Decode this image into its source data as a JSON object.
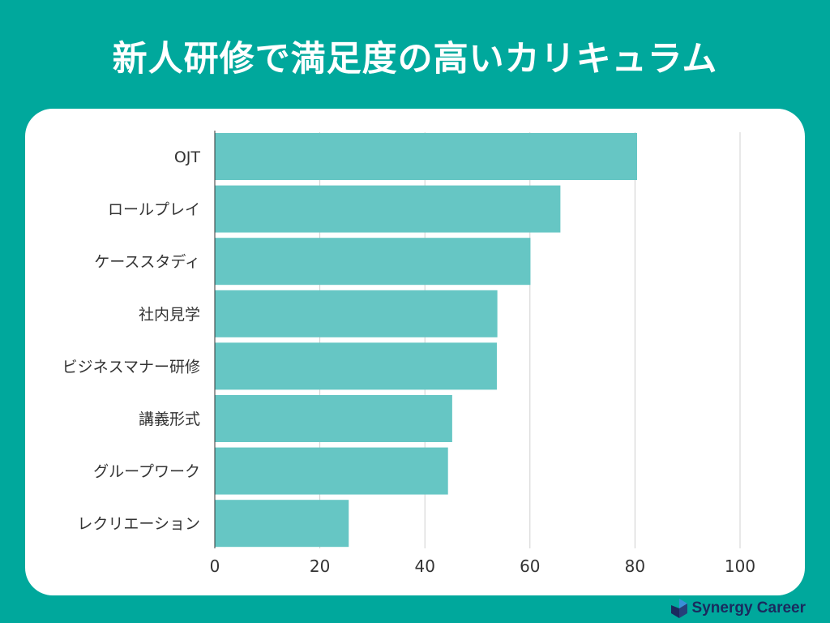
{
  "title": "新人研修で満足度の高いカリキュラム",
  "brand": {
    "name": "Synergy Career",
    "logo_icon": "synergy-logo-icon",
    "color": "#1a2a5e"
  },
  "colors": {
    "background": "#00a89c",
    "bar": "#66c6c4",
    "grid": "#d0d0d0",
    "axis": "#333333"
  },
  "chart_data": {
    "type": "bar",
    "orientation": "horizontal",
    "categories": [
      "OJT",
      "ロールプレイ",
      "ケーススタディ",
      "社内見学",
      "ビジネスマナー研修",
      "講義形式",
      "グループワーク",
      "レクリエーション"
    ],
    "values": [
      80.4,
      65.8,
      60.1,
      53.8,
      53.7,
      45.2,
      44.4,
      25.5
    ],
    "xlim": [
      0,
      100
    ],
    "xticks": [
      "0",
      "20",
      "40",
      "60",
      "80",
      "100"
    ],
    "grid": true
  }
}
